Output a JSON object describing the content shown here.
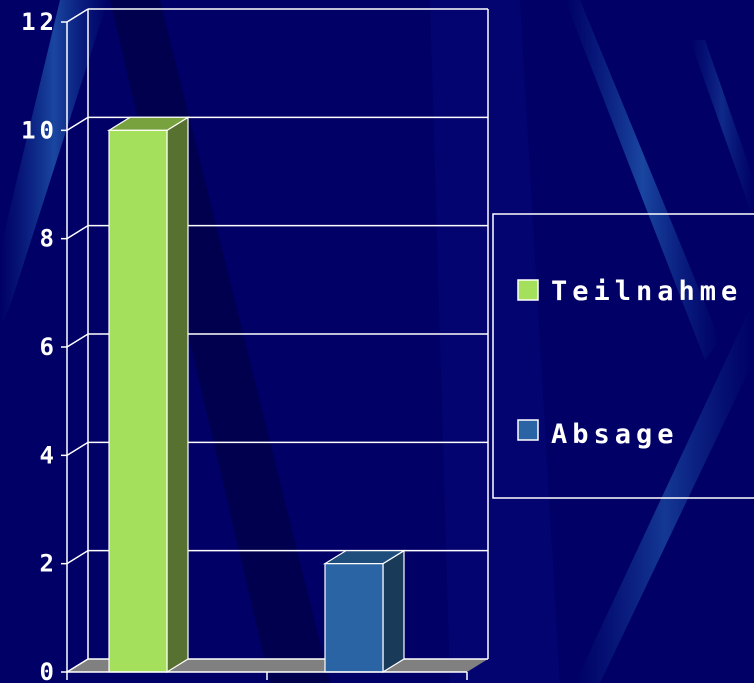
{
  "chart_data": {
    "type": "bar",
    "categories": [
      "",
      ""
    ],
    "series": [
      {
        "name": "Teilnahme",
        "color": "#a4e05c",
        "side_color": "#577130",
        "top_color": "#78a23e",
        "values": [
          10,
          null
        ]
      },
      {
        "name": "Absage",
        "color": "#2a64a4",
        "side_color": "#1a3a5a",
        "top_color": "#1f4d7c",
        "values": [
          null,
          2
        ]
      }
    ],
    "ylim": [
      0,
      12
    ],
    "yticks": [
      "0",
      "2",
      "4",
      "6",
      "8",
      "10",
      "12"
    ],
    "title": "",
    "xlabel": "",
    "ylabel": "",
    "grid": true,
    "legend": "right",
    "three_d": true,
    "background": "#000066",
    "gridline_color": "#ffffff",
    "floor_color": "#808080"
  }
}
